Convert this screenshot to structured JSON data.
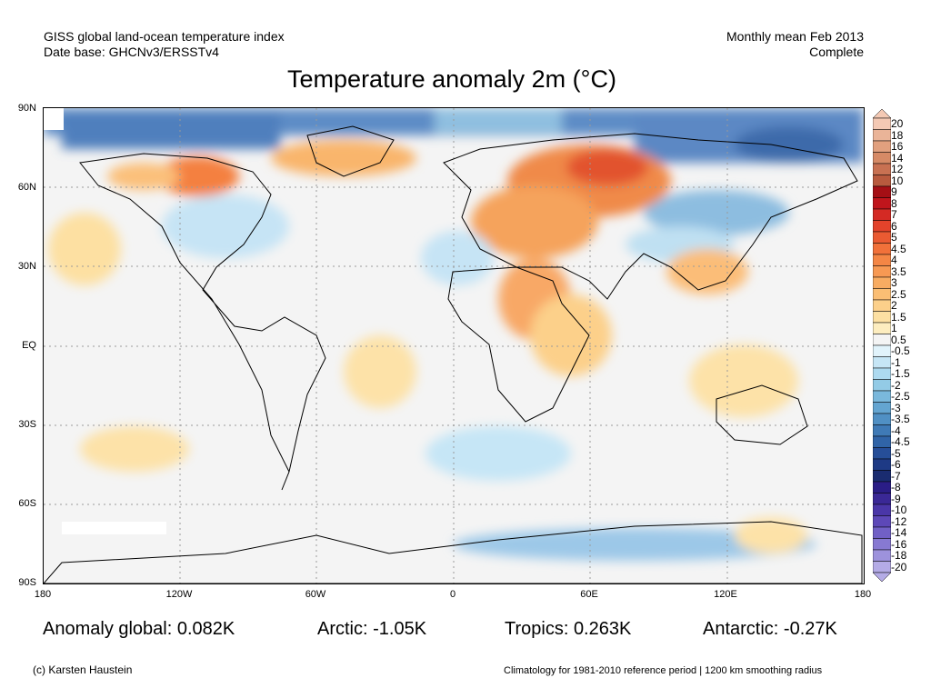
{
  "header": {
    "line1_left": "GISS global land-ocean temperature index",
    "line2_left": "Date base: GHCNv3/ERSSTv4",
    "line1_right": "Monthly mean Feb 2013",
    "line2_right": "Complete"
  },
  "title": "Temperature anomaly 2m (°C)",
  "map": {
    "lat_ticks": [
      "90N",
      "60N",
      "30N",
      "EQ",
      "30S",
      "60S",
      "90S"
    ],
    "lon_ticks": [
      "180",
      "120W",
      "60W",
      "0",
      "60E",
      "120E",
      "180"
    ]
  },
  "colorbar": {
    "labels": [
      "20",
      "18",
      "16",
      "14",
      "12",
      "10",
      "9",
      "8",
      "7",
      "6",
      "5",
      "4.5",
      "4",
      "3.5",
      "3",
      "2.5",
      "2",
      "1.5",
      "1",
      "0.5",
      "-0.5",
      "-1",
      "-1.5",
      "-2",
      "-2.5",
      "-3",
      "-3.5",
      "-4",
      "-4.5",
      "-5",
      "-6",
      "-7",
      "-8",
      "-9",
      "-10",
      "-12",
      "-14",
      "-16",
      "-18",
      "-20"
    ],
    "colors": [
      "#f4c9b4",
      "#eab498",
      "#e1a07e",
      "#d68a66",
      "#c87152",
      "#b85a3e",
      "#a50f15",
      "#c0151c",
      "#d42a24",
      "#e3432b",
      "#ea5a32",
      "#f1713a",
      "#f48645",
      "#f79953",
      "#f8ac62",
      "#fbbe74",
      "#fcd08a",
      "#fde0a2",
      "#fdedbf",
      "#f4f4f4",
      "#e1f3fb",
      "#c6e6f6",
      "#addaf0",
      "#93cbe6",
      "#7ab8dc",
      "#64a5d1",
      "#5090c4",
      "#3f7ab6",
      "#3064a7",
      "#264e98",
      "#1e3a85",
      "#1a2c70",
      "#2a1d86",
      "#3a2896",
      "#4a36a8",
      "#5d48b8",
      "#7160c6",
      "#8779d2",
      "#9d92dc",
      "#b4abe6"
    ]
  },
  "stats": {
    "global": "Anomaly global: 0.082K",
    "arctic": "Arctic: -1.05K",
    "tropics": "Tropics: 0.263K",
    "antarctic": "Antarctic: -0.27K"
  },
  "footer": {
    "left": "(c) Karsten Haustein",
    "right": "Climatology for 1981-2010 reference period | 1200 km smoothing radius"
  }
}
